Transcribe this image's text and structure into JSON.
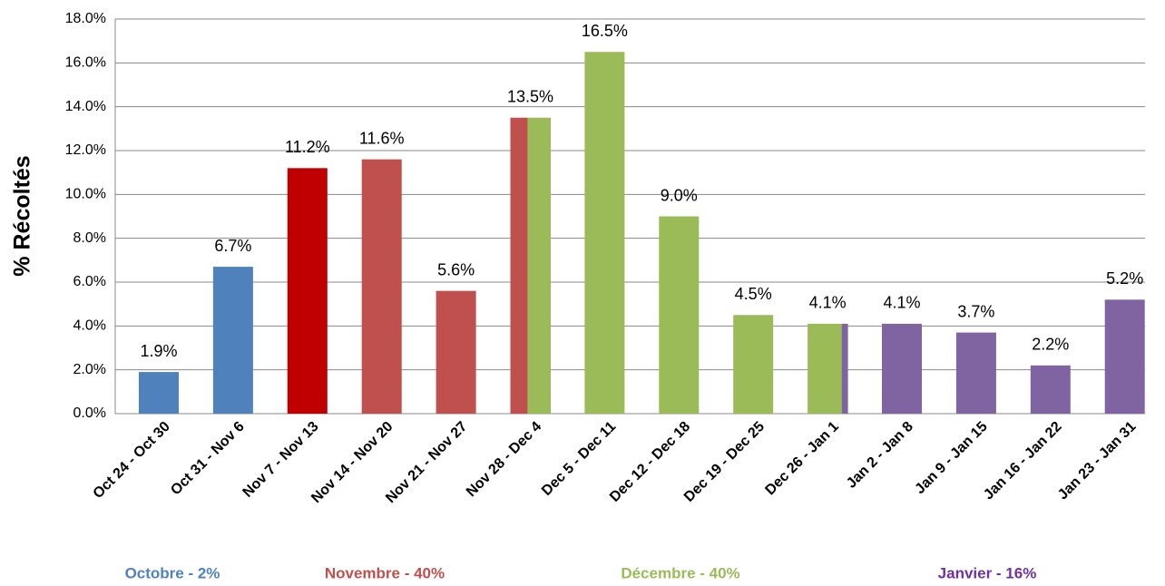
{
  "chart_data": {
    "type": "bar",
    "y_label": "% Récoltés",
    "categories": [
      "Oct 24 - Oct 30",
      "Oct 31 - Nov 6",
      "Nov 7 - Nov 13",
      "Nov 14 - Nov 20",
      "Nov 21 - Nov 27",
      "Nov 28 - Dec 4",
      "Dec 5 - Dec 11",
      "Dec 12 - Dec 18",
      "Dec 19 - Dec 25",
      "Dec 26 - Jan 1",
      "Jan 2 - Jan 8",
      "Jan 9 - Jan 15",
      "Jan 16 - Jan 22",
      "Jan 23 - Jan 31"
    ],
    "values": [
      1.9,
      6.7,
      11.2,
      11.6,
      5.6,
      13.5,
      16.5,
      9.0,
      4.5,
      4.1,
      4.1,
      3.7,
      2.2,
      5.2
    ],
    "value_labels": [
      "1.9%",
      "6.7%",
      "11.2%",
      "11.6%",
      "5.6%",
      "13.5%",
      "16.5%",
      "9.0%",
      "4.5%",
      "4.1%",
      "4.1%",
      "3.7%",
      "2.2%",
      "5.2%"
    ],
    "colors": [
      "#4f81bd",
      "#4f81bd",
      "#c00000",
      "#c0504d",
      "#c0504d",
      [
        "#c0504d",
        "#c0504d",
        "#c0504d",
        "#9bbb59",
        "#9bbb59",
        "#9bbb59",
        "#9bbb59"
      ],
      "#9bbb59",
      "#9bbb59",
      "#9bbb59",
      [
        "#9bbb59",
        "#9bbb59",
        "#9bbb59",
        "#9bbb59",
        "#9bbb59",
        "#9bbb59",
        "#8064a2"
      ],
      "#8064a2",
      "#8064a2",
      "#8064a2",
      "#8064a2"
    ],
    "ylim": [
      0,
      18
    ],
    "yticks": [
      {
        "value": 0,
        "label": "0.0%"
      },
      {
        "value": 2,
        "label": "2.0%"
      },
      {
        "value": 4,
        "label": "4.0%"
      },
      {
        "value": 6,
        "label": "6.0%"
      },
      {
        "value": 8,
        "label": "8.0%"
      },
      {
        "value": 10,
        "label": "10.0%"
      },
      {
        "value": 12,
        "label": "12.0%"
      },
      {
        "value": 14,
        "label": "14.0%"
      },
      {
        "value": 16,
        "label": "16.0%"
      },
      {
        "value": 18,
        "label": "18.0%"
      }
    ],
    "grid": true,
    "annotations": [
      {
        "text": "Octobre - 2%",
        "color": "#4f81bd"
      },
      {
        "text": "Novembre - 40%",
        "color": "#c0504d"
      },
      {
        "text": "Décembre - 40%",
        "color": "#9bbb59"
      },
      {
        "text": "Janvier - 16%",
        "color": "#7030a0"
      }
    ]
  }
}
